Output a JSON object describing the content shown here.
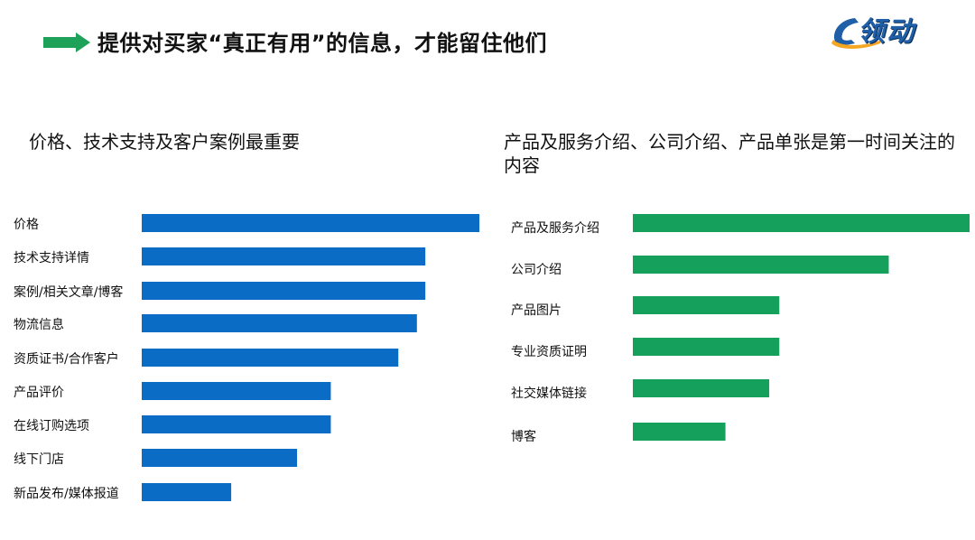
{
  "header": {
    "title": "提供对买家“真正有用”的信息，才能留住他们",
    "logo_text": "领动",
    "arrow_color": "#1ea25a",
    "logo_color": "#1f5fa8",
    "logo_accent_color": "#f5a623"
  },
  "chart_data": [
    {
      "type": "bar",
      "orientation": "horizontal",
      "title": "价格、技术支持及客户案例最重要",
      "color": "#0a6cc4",
      "categories": [
        "价格",
        "技术支持详情",
        "案例/相关文章/博客",
        "物流信息",
        "资质证书/合作客户",
        "产品评价",
        "在线订购选项",
        "线下门店",
        "新品发布/媒体报道"
      ],
      "values": [
        100,
        84,
        84,
        81.5,
        76,
        56,
        56,
        46,
        26.5
      ],
      "xlim": [
        0,
        100
      ],
      "grid": false,
      "legend": "none"
    },
    {
      "type": "bar",
      "orientation": "horizontal",
      "title": "产品及服务介绍、公司介绍、产品单张是第一时间关注的内容",
      "color": "#15a05c",
      "categories": [
        "产品及服务介绍",
        "公司介绍",
        "产品图片",
        "专业资质证明",
        "社交媒体链接",
        "博客"
      ],
      "values": [
        100,
        76,
        43.5,
        43.5,
        40.5,
        27.5
      ],
      "xlim": [
        0,
        100
      ],
      "grid": false,
      "legend": "none"
    }
  ]
}
